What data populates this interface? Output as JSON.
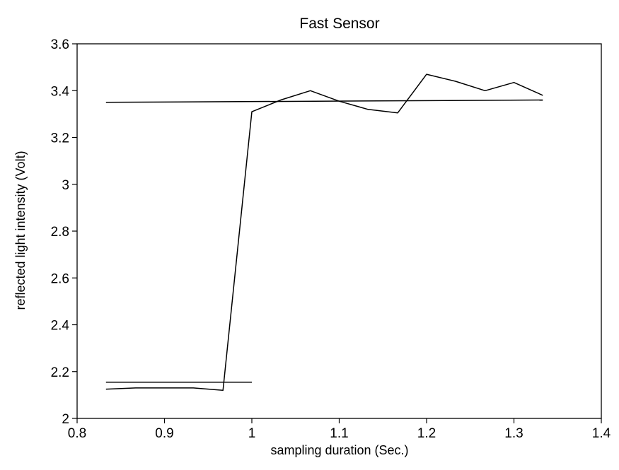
{
  "chart_data": {
    "type": "line",
    "title": "Fast Sensor",
    "xlabel": "sampling duration (Sec.)",
    "ylabel": "reflected light intensity (Volt)",
    "xlim": [
      0.8,
      1.4
    ],
    "ylim": [
      2,
      3.6
    ],
    "x_ticks": [
      0.8,
      0.9,
      1,
      1.1,
      1.2,
      1.3,
      1.4
    ],
    "x_tick_labels": [
      "0.8",
      "0.9",
      "1",
      "1.1",
      "1.2",
      "1.3",
      "1.4"
    ],
    "y_ticks": [
      2,
      2.2,
      2.4,
      2.6,
      2.8,
      3,
      3.2,
      3.4,
      3.6
    ],
    "y_tick_labels": [
      "2",
      "2.2",
      "2.4",
      "2.6",
      "2.8",
      "3",
      "3.2",
      "3.4",
      "3.6"
    ],
    "grid": false,
    "legend": "none",
    "line_color": "#000000",
    "series": [
      {
        "x": [
          0.833,
          0.867,
          0.9,
          0.933,
          0.967,
          1.0,
          1.033,
          1.067,
          1.1,
          1.133,
          1.167,
          1.2,
          1.233,
          1.267,
          1.3,
          1.333
        ],
        "y": [
          2.125,
          2.13,
          2.13,
          2.13,
          2.12,
          3.31,
          3.36,
          3.4,
          3.355,
          3.32,
          3.305,
          3.47,
          3.44,
          3.4,
          3.435,
          3.38
        ]
      },
      {
        "x": [
          0.833,
          1.0
        ],
        "y": [
          2.155,
          2.155
        ]
      },
      {
        "x": [
          0.833,
          1.333
        ],
        "y": [
          3.35,
          3.36
        ]
      }
    ]
  }
}
